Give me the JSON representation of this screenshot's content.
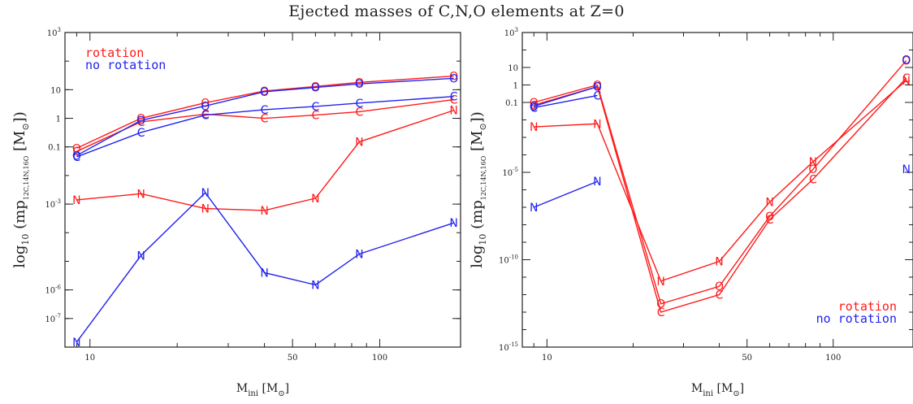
{
  "title": "Ejected masses of C,N,O elements at Z=0",
  "colors": {
    "rotation": "#ff1a1a",
    "no_rotation": "#2222ee",
    "axis": "#222222"
  },
  "chart_data": [
    {
      "type": "line",
      "xscale": "log",
      "yscale": "log",
      "xlim": [
        8.2,
        190
      ],
      "ylim": [
        1e-08,
        1000
      ],
      "xticks": [
        {
          "value": 10,
          "label": "10"
        },
        {
          "value": 50,
          "label": "50"
        },
        {
          "value": 100,
          "label": "100"
        }
      ],
      "yticks": [
        {
          "value": 1e-07,
          "label_base": "10",
          "label_exp": "-7"
        },
        {
          "value": 1e-06,
          "label_base": "10",
          "label_exp": "-6"
        },
        {
          "value": 0.001,
          "label_base": "10",
          "label_exp": "-3"
        },
        {
          "value": 0.1,
          "label": "0.1"
        },
        {
          "value": 1,
          "label": "1"
        },
        {
          "value": 10,
          "label": "10"
        },
        {
          "value": 1000,
          "label_base": "10",
          "label_exp": "3"
        }
      ],
      "xlabel": {
        "main": "M",
        "sub": "ini",
        "unit": "[M",
        "sun": "⊙",
        "close": "]"
      },
      "ylabel": {
        "log": "log",
        "log_sub": "10",
        "open": "(mp",
        "species": "12C,14N,16O",
        "unit": "[M",
        "sun": "⊙",
        "close": "])"
      },
      "legend": {
        "position": "top-left",
        "entries": [
          "rotation",
          "no rotation"
        ]
      },
      "series": [
        {
          "name": "rotation",
          "element": "C",
          "marker": "C",
          "x": [
            9,
            15,
            25,
            40,
            60,
            85,
            180
          ],
          "y": [
            0.07,
            0.75,
            1.4,
            1.0,
            1.3,
            1.7,
            4.5
          ]
        },
        {
          "name": "rotation",
          "element": "N",
          "marker": "N",
          "x": [
            9,
            15,
            25,
            40,
            60,
            85,
            180
          ],
          "y": [
            0.0014,
            0.0023,
            0.0007,
            0.0006,
            0.0016,
            0.15,
            1.9
          ]
        },
        {
          "name": "rotation",
          "element": "O",
          "marker": "O",
          "x": [
            9,
            15,
            25,
            40,
            60,
            85,
            180
          ],
          "y": [
            0.09,
            1.0,
            3.5,
            9.0,
            13,
            18,
            30
          ]
        },
        {
          "name": "no rotation",
          "element": "C",
          "marker": "C",
          "x": [
            9,
            15,
            25,
            40,
            60,
            85,
            180
          ],
          "y": [
            0.045,
            0.32,
            1.3,
            2.0,
            2.6,
            3.4,
            5.8
          ]
        },
        {
          "name": "no rotation",
          "element": "N",
          "marker": "N",
          "x": [
            9,
            15,
            25,
            40,
            60,
            85,
            180
          ],
          "y": [
            1.5e-08,
            1.6e-05,
            0.0025,
            4e-06,
            1.5e-06,
            1.8e-05,
            0.00022
          ]
        },
        {
          "name": "no rotation",
          "element": "O",
          "marker": "O",
          "x": [
            9,
            15,
            25,
            40,
            60,
            85,
            180
          ],
          "y": [
            0.05,
            0.85,
            2.7,
            8.5,
            12,
            16,
            25
          ]
        }
      ]
    },
    {
      "type": "line",
      "xscale": "log",
      "yscale": "log",
      "xlim": [
        8.2,
        190
      ],
      "ylim": [
        1e-15,
        1000
      ],
      "xticks": [
        {
          "value": 10,
          "label": "10"
        },
        {
          "value": 50,
          "label": "50"
        },
        {
          "value": 100,
          "label": "100"
        }
      ],
      "yticks": [
        {
          "value": 1e-15,
          "label_base": "10",
          "label_exp": "-15"
        },
        {
          "value": 1e-10,
          "label_base": "10",
          "label_exp": "-10"
        },
        {
          "value": 1e-05,
          "label_base": "10",
          "label_exp": "-5"
        },
        {
          "value": 0.1,
          "label": "0.1"
        },
        {
          "value": 1,
          "label": "1"
        },
        {
          "value": 10,
          "label": "10"
        },
        {
          "value": 1000,
          "label_base": "10",
          "label_exp": "3"
        }
      ],
      "xlabel": {
        "main": "M",
        "sub": "ini",
        "unit": "[M",
        "sun": "⊙",
        "close": "]"
      },
      "ylabel": {
        "log": "log",
        "log_sub": "10",
        "open": "(mp",
        "species": "12C,14N,16O",
        "unit": "[M",
        "sun": "⊙",
        "close": "])"
      },
      "legend": {
        "position": "bottom-right",
        "entries": [
          "rotation",
          "no rotation"
        ]
      },
      "series": [
        {
          "name": "rotation",
          "element": "C",
          "marker": "C",
          "x": [
            9,
            15,
            25,
            40,
            60,
            85,
            180
          ],
          "y": [
            0.07,
            0.8,
            1e-13,
            1e-12,
            2e-08,
            4e-06,
            2.5
          ]
        },
        {
          "name": "rotation",
          "element": "N",
          "marker": "N",
          "x": [
            9,
            15,
            25,
            40,
            60,
            85,
            180
          ],
          "y": [
            0.004,
            0.006,
            6e-12,
            8e-11,
            2e-07,
            4e-05,
            1.8
          ]
        },
        {
          "name": "rotation",
          "element": "O",
          "marker": "O",
          "x": [
            9,
            15,
            25,
            40,
            60,
            85,
            180
          ],
          "y": [
            0.1,
            1.0,
            3e-13,
            3e-12,
            3e-08,
            1.5e-05,
            25
          ]
        },
        {
          "name": "no rotation",
          "element": "C",
          "marker": "C",
          "x": [
            9,
            15
          ],
          "y": [
            0.05,
            0.25
          ]
        },
        {
          "name": "no rotation",
          "element": "N",
          "marker": "N",
          "x": [
            9,
            15,
            180
          ],
          "y": [
            1e-07,
            3e-06,
            1.5e-05
          ]
        },
        {
          "name": "no rotation",
          "element": "O",
          "marker": "O",
          "x": [
            9,
            15,
            180
          ],
          "y": [
            0.06,
            0.8,
            28
          ]
        }
      ]
    }
  ]
}
